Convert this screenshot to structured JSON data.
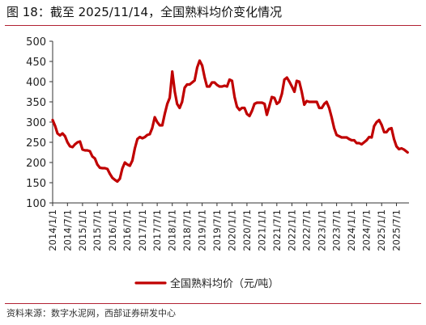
{
  "figure": {
    "title": "图 18：截至 2025/11/14，全国熟料均价变化情况",
    "source": "资料来源：数字水泥网，西部证券研发中心",
    "accent_color": "#b22233",
    "series_color": "#c00000"
  },
  "chart_data": {
    "type": "line",
    "title": "",
    "xlabel": "",
    "ylabel": "",
    "ylim": [
      100,
      500
    ],
    "yticks": [
      "100",
      "150",
      "200",
      "250",
      "300",
      "350",
      "400",
      "450",
      "500"
    ],
    "xticks": [
      "2014/1/1",
      "2014/7/1",
      "2015/1/1",
      "2015/7/1",
      "2016/1/1",
      "2016/7/1",
      "2017/1/1",
      "2017/7/1",
      "2018/1/1",
      "2018/7/1",
      "2019/1/1",
      "2019/7/1",
      "2020/1/1",
      "2020/7/1",
      "2021/1/1",
      "2021/7/1",
      "2022/1/1",
      "2022/7/1",
      "2023/1/1",
      "2023/7/1",
      "2024/1/1",
      "2024/7/1",
      "2025/1/1",
      "2025/7/1"
    ],
    "grid": false,
    "legend_position": "bottom",
    "series": [
      {
        "name": "全国熟料均价（元/吨）",
        "color": "#c00000",
        "points": [
          [
            "2014/1/1",
            305
          ],
          [
            "2014/2/1",
            290
          ],
          [
            "2014/3/1",
            272
          ],
          [
            "2014/4/1",
            267
          ],
          [
            "2014/5/1",
            272
          ],
          [
            "2014/6/1",
            265
          ],
          [
            "2014/7/1",
            250
          ],
          [
            "2014/8/1",
            240
          ],
          [
            "2014/9/1",
            238
          ],
          [
            "2014/10/1",
            245
          ],
          [
            "2014/11/1",
            250
          ],
          [
            "2014/12/1",
            252
          ],
          [
            "2015/1/1",
            232
          ],
          [
            "2015/2/1",
            230
          ],
          [
            "2015/3/1",
            230
          ],
          [
            "2015/4/1",
            228
          ],
          [
            "2015/5/1",
            215
          ],
          [
            "2015/6/1",
            210
          ],
          [
            "2015/7/1",
            195
          ],
          [
            "2015/8/1",
            187
          ],
          [
            "2015/9/1",
            186
          ],
          [
            "2015/10/1",
            186
          ],
          [
            "2015/11/1",
            184
          ],
          [
            "2015/12/1",
            172
          ],
          [
            "2016/1/1",
            162
          ],
          [
            "2016/2/1",
            157
          ],
          [
            "2016/3/1",
            153
          ],
          [
            "2016/4/1",
            160
          ],
          [
            "2016/5/1",
            185
          ],
          [
            "2016/6/1",
            200
          ],
          [
            "2016/7/1",
            195
          ],
          [
            "2016/8/1",
            192
          ],
          [
            "2016/9/1",
            205
          ],
          [
            "2016/10/1",
            235
          ],
          [
            "2016/11/1",
            258
          ],
          [
            "2016/12/1",
            263
          ],
          [
            "2017/1/1",
            260
          ],
          [
            "2017/2/1",
            263
          ],
          [
            "2017/3/1",
            268
          ],
          [
            "2017/4/1",
            270
          ],
          [
            "2017/5/1",
            285
          ],
          [
            "2017/6/1",
            312
          ],
          [
            "2017/7/1",
            300
          ],
          [
            "2017/8/1",
            292
          ],
          [
            "2017/9/1",
            292
          ],
          [
            "2017/10/1",
            320
          ],
          [
            "2017/11/1",
            345
          ],
          [
            "2017/12/1",
            360
          ],
          [
            "2018/1/1",
            425
          ],
          [
            "2018/2/1",
            375
          ],
          [
            "2018/3/1",
            345
          ],
          [
            "2018/4/1",
            335
          ],
          [
            "2018/5/1",
            350
          ],
          [
            "2018/6/1",
            385
          ],
          [
            "2018/7/1",
            393
          ],
          [
            "2018/8/1",
            393
          ],
          [
            "2018/9/1",
            398
          ],
          [
            "2018/10/1",
            403
          ],
          [
            "2018/11/1",
            435
          ],
          [
            "2018/12/1",
            452
          ],
          [
            "2019/1/1",
            440
          ],
          [
            "2019/2/1",
            410
          ],
          [
            "2019/3/1",
            388
          ],
          [
            "2019/4/1",
            388
          ],
          [
            "2019/5/1",
            398
          ],
          [
            "2019/6/1",
            398
          ],
          [
            "2019/7/1",
            392
          ],
          [
            "2019/8/1",
            388
          ],
          [
            "2019/9/1",
            388
          ],
          [
            "2019/10/1",
            390
          ],
          [
            "2019/11/1",
            388
          ],
          [
            "2019/12/1",
            405
          ],
          [
            "2020/1/1",
            402
          ],
          [
            "2020/2/1",
            362
          ],
          [
            "2020/3/1",
            338
          ],
          [
            "2020/4/1",
            330
          ],
          [
            "2020/5/1",
            335
          ],
          [
            "2020/6/1",
            335
          ],
          [
            "2020/7/1",
            320
          ],
          [
            "2020/8/1",
            315
          ],
          [
            "2020/9/1",
            328
          ],
          [
            "2020/10/1",
            345
          ],
          [
            "2020/11/1",
            348
          ],
          [
            "2020/12/1",
            348
          ],
          [
            "2021/1/1",
            348
          ],
          [
            "2021/2/1",
            345
          ],
          [
            "2021/3/1",
            318
          ],
          [
            "2021/4/1",
            340
          ],
          [
            "2021/5/1",
            362
          ],
          [
            "2021/6/1",
            360
          ],
          [
            "2021/7/1",
            345
          ],
          [
            "2021/8/1",
            350
          ],
          [
            "2021/9/1",
            370
          ],
          [
            "2021/10/1",
            405
          ],
          [
            "2021/11/1",
            410
          ],
          [
            "2021/12/1",
            400
          ],
          [
            "2022/1/1",
            388
          ],
          [
            "2022/2/1",
            375
          ],
          [
            "2022/3/1",
            402
          ],
          [
            "2022/4/1",
            400
          ],
          [
            "2022/5/1",
            375
          ],
          [
            "2022/6/1",
            343
          ],
          [
            "2022/7/1",
            352
          ],
          [
            "2022/8/1",
            350
          ],
          [
            "2022/9/1",
            350
          ],
          [
            "2022/10/1",
            350
          ],
          [
            "2022/11/1",
            350
          ],
          [
            "2022/12/1",
            335
          ],
          [
            "2023/1/1",
            335
          ],
          [
            "2023/2/1",
            345
          ],
          [
            "2023/3/1",
            350
          ],
          [
            "2023/4/1",
            335
          ],
          [
            "2023/5/1",
            312
          ],
          [
            "2023/6/1",
            285
          ],
          [
            "2023/7/1",
            268
          ],
          [
            "2023/8/1",
            265
          ],
          [
            "2023/9/1",
            262
          ],
          [
            "2023/10/1",
            262
          ],
          [
            "2023/11/1",
            262
          ],
          [
            "2023/12/1",
            258
          ],
          [
            "2024/1/1",
            255
          ],
          [
            "2024/2/1",
            255
          ],
          [
            "2024/3/1",
            248
          ],
          [
            "2024/4/1",
            248
          ],
          [
            "2024/5/1",
            245
          ],
          [
            "2024/6/1",
            250
          ],
          [
            "2024/7/1",
            255
          ],
          [
            "2024/8/1",
            263
          ],
          [
            "2024/9/1",
            262
          ],
          [
            "2024/10/1",
            290
          ],
          [
            "2024/11/1",
            300
          ],
          [
            "2024/12/1",
            305
          ],
          [
            "2025/1/1",
            293
          ],
          [
            "2025/2/1",
            275
          ],
          [
            "2025/3/1",
            275
          ],
          [
            "2025/4/1",
            283
          ],
          [
            "2025/5/1",
            285
          ],
          [
            "2025/6/1",
            258
          ],
          [
            "2025/7/1",
            240
          ],
          [
            "2025/8/1",
            233
          ],
          [
            "2025/9/1",
            235
          ],
          [
            "2025/10/1",
            232
          ],
          [
            "2025/11/14",
            225
          ]
        ]
      }
    ]
  }
}
